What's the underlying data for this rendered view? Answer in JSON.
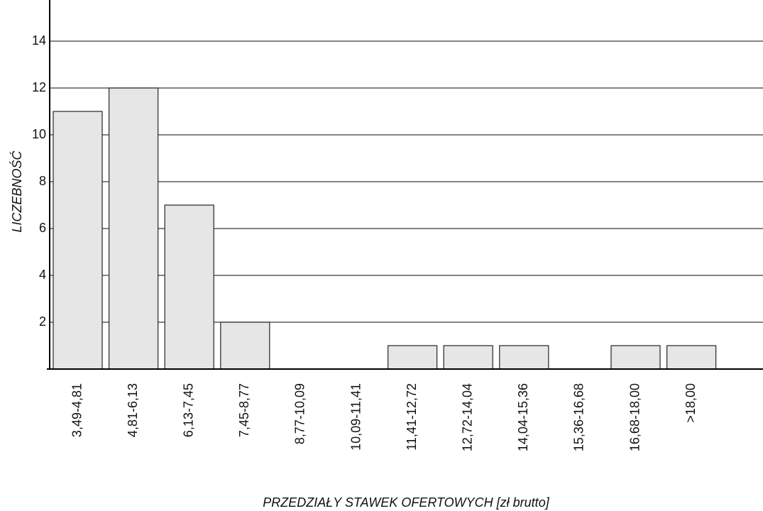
{
  "chart_data": {
    "type": "bar",
    "title": "",
    "xlabel": "PRZEDZIAŁY STAWEK OFERTOWYCH [zł brutto]",
    "ylabel": "LICZEBNOŚĆ",
    "ylim": [
      0,
      15
    ],
    "yticks": [
      2,
      4,
      6,
      8,
      10,
      12,
      14
    ],
    "ytick_labels": [
      "2",
      "4",
      "6",
      "8",
      "10",
      "12",
      "14"
    ],
    "grid": true,
    "categories": [
      "3,49-4,81",
      "4,81-6,13",
      "6,13-7,45",
      "7,45-8,77",
      "8,77-10,09",
      "10,09-11,41",
      "11,41-12,72",
      "12,72-14,04",
      "14,04-15,36",
      "15,36-16,68",
      "16,68-18,00",
      ">18,00"
    ],
    "values": [
      11,
      12,
      7,
      2,
      0,
      0,
      1,
      1,
      1,
      0,
      1,
      1
    ],
    "colors": {
      "bar_fill": "#e6e6e6",
      "bar_stroke": "#333333",
      "grid": "#3a3a3a",
      "axis": "#000000"
    }
  }
}
